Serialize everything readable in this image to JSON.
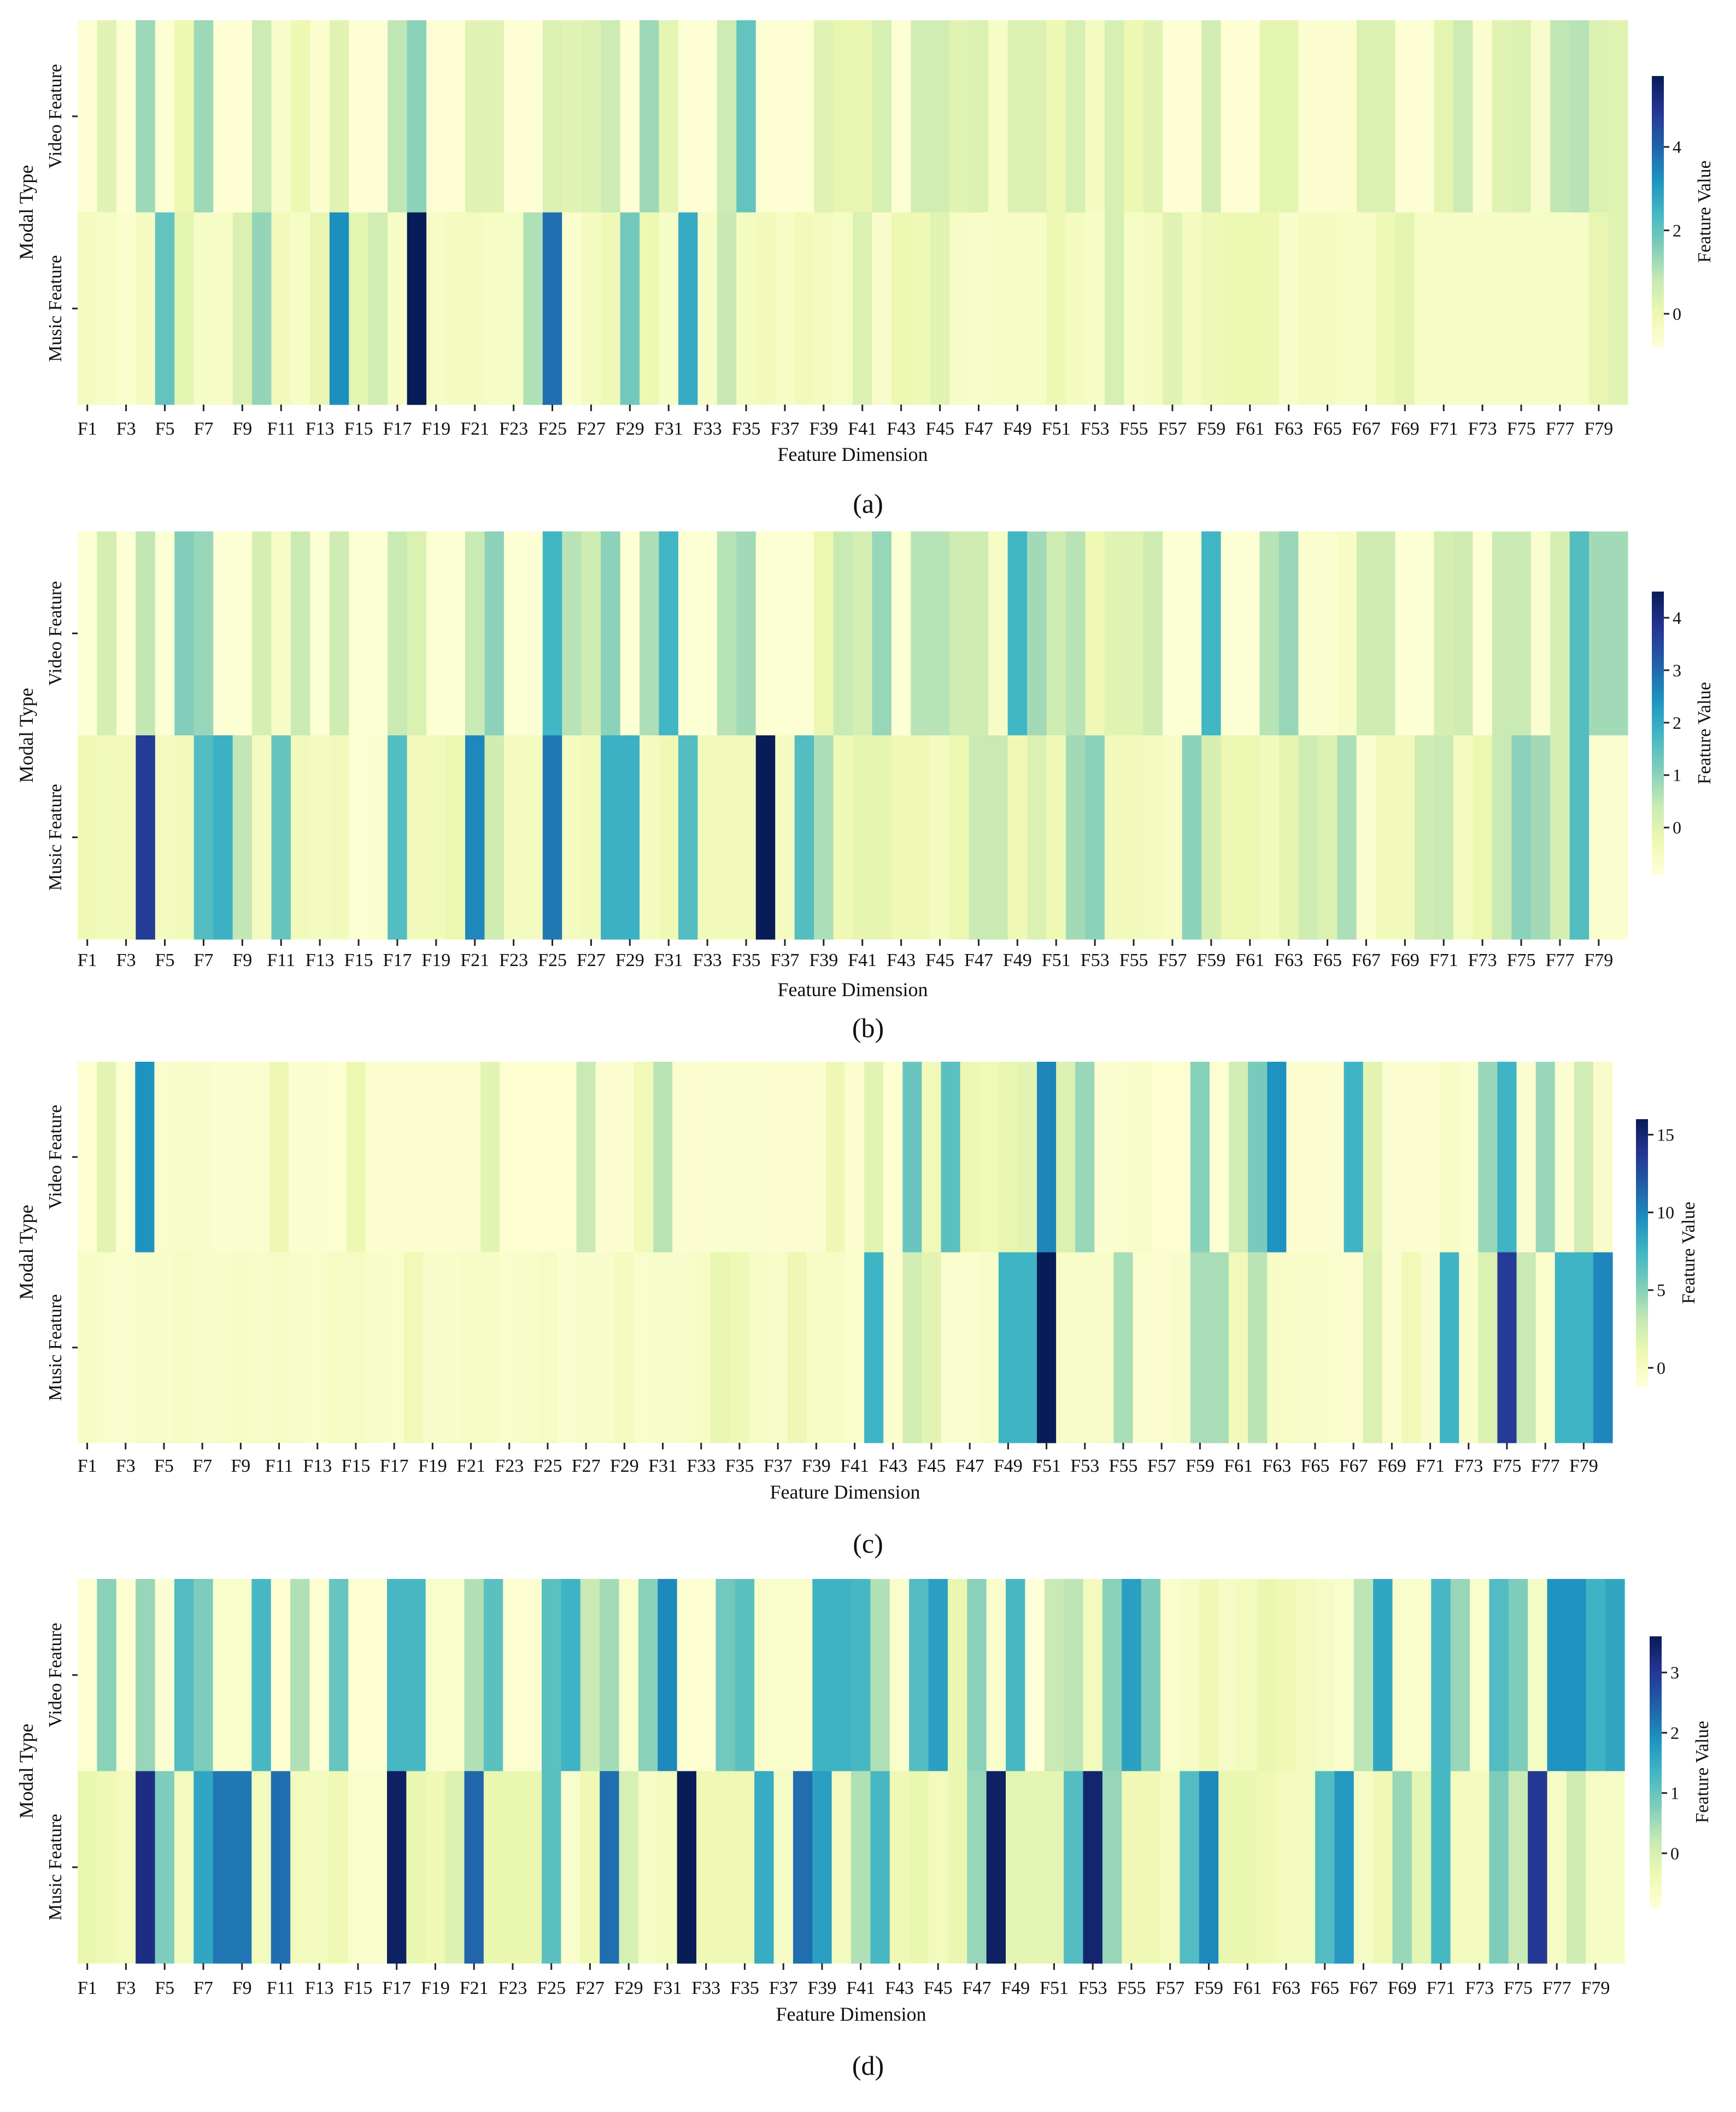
{
  "chart_data": [
    {
      "panel_label": "(a)",
      "type": "heatmap",
      "xlabel": "Feature Dimension",
      "ylabel": "Modal Type",
      "rows": [
        "Video Feature",
        "Music Feature"
      ],
      "x_tick_labels": [
        "F1",
        "F3",
        "F5",
        "F7",
        "F9",
        "F11",
        "F13",
        "F15",
        "F17",
        "F19",
        "F21",
        "F23",
        "F25",
        "F27",
        "F29",
        "F31",
        "F33",
        "F35",
        "F37",
        "F39",
        "F41",
        "F43",
        "F45",
        "F47",
        "F49",
        "F51",
        "F53",
        "F55",
        "F57",
        "F59",
        "F61",
        "F63",
        "F65",
        "F67",
        "F69",
        "F71",
        "F73",
        "F75",
        "F77",
        "F79"
      ],
      "colorbar": {
        "label": "Feature Value",
        "range": [
          -0.8,
          5.7
        ],
        "ticks": [
          "0",
          "2",
          "4"
        ]
      },
      "values": [
        [
          -0.7,
          0.3,
          -0.7,
          1.3,
          -0.7,
          0,
          1.3,
          -0.7,
          -0.7,
          0.7,
          -0.5,
          0,
          -0.6,
          0.3,
          -0.7,
          -0.7,
          0.9,
          1.5,
          -0.7,
          -0.7,
          0.3,
          0.3,
          -0.7,
          -0.7,
          0.4,
          0.3,
          0.4,
          0.7,
          -0.7,
          1.3,
          0.2,
          -0.7,
          -0.7,
          0.7,
          2.0,
          -0.7,
          -0.7,
          -0.7,
          0.3,
          0.1,
          0.1,
          0.5,
          -0.7,
          0.6,
          0.6,
          0.3,
          0.4,
          -0.4,
          0.4,
          0.4,
          0.0,
          0.5,
          -0.3,
          0.5,
          0.0,
          0.3,
          -0.7,
          -0.7,
          0.6,
          -0.7,
          -0.7,
          0.2,
          0.2,
          -0.6,
          -0.6,
          -0.6,
          0.4,
          0.4,
          -0.7,
          -0.7,
          0.2,
          0.7,
          -0.6,
          0.3,
          0.4,
          -0.5,
          0.9,
          1.0,
          0.4,
          0.3
        ],
        [
          -0.3,
          -0.4,
          -0.6,
          -0.3,
          2.0,
          0.2,
          -0.4,
          -0.4,
          0.4,
          1.4,
          -0.2,
          -0.4,
          0.1,
          3.3,
          0.2,
          0.6,
          -0.4,
          5.7,
          -0.4,
          -0.3,
          -0.3,
          -0.4,
          -0.4,
          1.1,
          3.8,
          -0.6,
          -0.3,
          -0.1,
          1.8,
          0.0,
          -0.4,
          2.7,
          -0.4,
          0.8,
          -0.3,
          -0.2,
          -0.4,
          -0.2,
          -0.3,
          -0.4,
          0.4,
          -0.5,
          0.0,
          -0.1,
          0.3,
          -0.4,
          -0.5,
          -0.4,
          -0.4,
          -0.4,
          0.0,
          -0.3,
          -0.4,
          0.5,
          -0.4,
          -0.3,
          0.3,
          -0.3,
          -0.1,
          0.0,
          0.0,
          0.0,
          -0.5,
          -0.3,
          -0.3,
          -0.4,
          -0.4,
          -0.1,
          0.2,
          -0.4,
          -0.4,
          -0.4,
          -0.4,
          -0.4,
          -0.4,
          -0.4,
          -0.4,
          -0.4,
          0.1,
          0.3
        ]
      ]
    },
    {
      "panel_label": "(b)",
      "type": "heatmap",
      "xlabel": "Feature Dimension",
      "ylabel": "Modal Type",
      "rows": [
        "Video Feature",
        "Music Feature"
      ],
      "x_tick_labels": [
        "F1",
        "F3",
        "F5",
        "F7",
        "F9",
        "F11",
        "F13",
        "F15",
        "F17",
        "F19",
        "F21",
        "F23",
        "F25",
        "F27",
        "F29",
        "F31",
        "F33",
        "F35",
        "F37",
        "F39",
        "F41",
        "F43",
        "F45",
        "F47",
        "F49",
        "F51",
        "F53",
        "F55",
        "F57",
        "F59",
        "F61",
        "F63",
        "F65",
        "F67",
        "F69",
        "F71",
        "F73",
        "F75",
        "F77",
        "F79"
      ],
      "colorbar": {
        "label": "Feature Value",
        "range": [
          -0.9,
          4.5
        ],
        "ticks": [
          "0",
          "1",
          "2",
          "3",
          "4"
        ]
      },
      "values": [
        [
          -0.8,
          0.2,
          -0.8,
          0.5,
          -0.8,
          1.1,
          0.9,
          -0.8,
          -0.8,
          0.2,
          -0.6,
          0.4,
          -0.8,
          0.3,
          -0.8,
          -0.8,
          0.4,
          0.1,
          -0.8,
          -0.8,
          0.4,
          1.0,
          -0.8,
          -0.8,
          1.8,
          0.6,
          0.3,
          1.0,
          -0.8,
          0.7,
          1.8,
          -0.8,
          -0.8,
          0.6,
          0.8,
          -0.8,
          -0.8,
          -0.8,
          -0.2,
          0.4,
          0.2,
          0.9,
          -0.8,
          0.6,
          0.6,
          0.3,
          0.3,
          -0.6,
          1.8,
          0.8,
          0.3,
          0.6,
          -0.3,
          0.0,
          0.0,
          0.3,
          -0.8,
          -0.8,
          1.8,
          -0.8,
          -0.8,
          0.6,
          0.9,
          -0.7,
          -0.7,
          -0.6,
          0.3,
          0.3,
          -0.8,
          -0.8,
          0.2,
          0.3,
          -0.8,
          0.4,
          0.4,
          -0.7,
          0.2,
          1.6,
          0.8,
          0.8
        ],
        [
          -0.3,
          -0.4,
          -0.4,
          3.7,
          -0.5,
          -0.4,
          1.6,
          1.9,
          0.5,
          -0.5,
          1.4,
          -0.4,
          -0.5,
          -0.4,
          -0.8,
          -0.7,
          1.6,
          -0.4,
          -0.4,
          -0.2,
          2.6,
          0.3,
          -0.5,
          -0.5,
          2.8,
          -0.5,
          -0.4,
          1.9,
          1.9,
          -0.5,
          -0.3,
          1.6,
          -0.4,
          -0.4,
          -0.4,
          4.5,
          -0.5,
          1.6,
          0.7,
          -0.3,
          -0.1,
          -0.1,
          -0.3,
          -0.3,
          -0.5,
          -0.2,
          0.4,
          0.4,
          -0.3,
          0.1,
          -0.3,
          0.8,
          1.0,
          -0.4,
          -0.4,
          -0.5,
          -0.6,
          1.0,
          0.2,
          -0.2,
          -0.2,
          -0.4,
          -0.1,
          0.3,
          0.1,
          0.7,
          -0.7,
          -0.4,
          -0.4,
          0.3,
          0.4,
          -0.5,
          -0.2,
          0.4,
          1.0,
          0.8,
          0.2,
          1.6,
          -0.7,
          -0.7
        ]
      ]
    },
    {
      "panel_label": "(c)",
      "type": "heatmap",
      "xlabel": "Feature Dimension",
      "ylabel": "Modal Type",
      "rows": [
        "Video Feature",
        "Music Feature"
      ],
      "x_tick_labels": [
        "F1",
        "F3",
        "F5",
        "F7",
        "F9",
        "F11",
        "F13",
        "F15",
        "F17",
        "F19",
        "F21",
        "F23",
        "F25",
        "F27",
        "F29",
        "F31",
        "F33",
        "F35",
        "F37",
        "F39",
        "F41",
        "F43",
        "F45",
        "F47",
        "F49",
        "F51",
        "F53",
        "F55",
        "F57",
        "F59",
        "F61",
        "F63",
        "F65",
        "F67",
        "F69",
        "F71",
        "F73",
        "F75",
        "F77",
        "F79"
      ],
      "colorbar": {
        "label": "Feature Value",
        "range": [
          -1.2,
          16
        ],
        "ticks": [
          "0",
          "5",
          "10",
          "15"
        ]
      },
      "values": [
        [
          -0.8,
          1.5,
          -0.8,
          9.5,
          -0.5,
          -0.3,
          -0.4,
          -0.6,
          -0.6,
          -0.6,
          0.8,
          -0.6,
          -0.6,
          -0.8,
          1.0,
          -0.7,
          -0.7,
          -0.7,
          -0.7,
          -0.7,
          -0.7,
          1.5,
          -0.8,
          -0.8,
          -0.8,
          -0.8,
          3.0,
          -0.7,
          -0.7,
          0.6,
          3.5,
          -0.7,
          -0.7,
          -0.6,
          -0.6,
          -0.6,
          -0.7,
          -0.7,
          -0.7,
          0.8,
          -0.7,
          1.5,
          -0.8,
          6,
          0.5,
          6.5,
          1.0,
          0.6,
          1.2,
          1.5,
          10,
          2.0,
          4.5,
          -0.7,
          -0.5,
          -0.3,
          -0.8,
          -0.8,
          5,
          -0.8,
          2.5,
          5.5,
          9.5,
          -0.7,
          -0.7,
          -0.7,
          7.5,
          1.5,
          -0.7,
          -0.7,
          -0.7,
          -0.2,
          -0.6,
          4.5,
          7.5,
          -0.7,
          4.5,
          -0.7,
          2.5,
          -0.4
        ],
        [
          -0.2,
          -0.5,
          -0.6,
          -0.3,
          -0.4,
          0.0,
          -0.4,
          -0.3,
          -0.2,
          -0.3,
          -0.2,
          -0.3,
          -0.5,
          0.0,
          -0.1,
          -0.4,
          -0.5,
          0.6,
          -0.4,
          -0.3,
          -0.1,
          -0.2,
          -0.5,
          -0.3,
          -0.1,
          -0.6,
          -0.4,
          -0.4,
          0.3,
          -0.5,
          -0.4,
          -0.4,
          -0.2,
          1.2,
          0.7,
          -0.2,
          -0.3,
          0.8,
          -0.2,
          -0.2,
          -0.5,
          7.5,
          -0.6,
          2.5,
          1.5,
          -0.6,
          -0.6,
          -0.3,
          7.5,
          7.5,
          16,
          -0.3,
          -0.4,
          -0.3,
          4.0,
          -0.6,
          -0.7,
          -0.4,
          4.0,
          4.0,
          0.5,
          3.5,
          -0.2,
          -0.3,
          -0.3,
          -0.5,
          -0.7,
          2.0,
          -0.7,
          0.5,
          -0.4,
          7.5,
          -0.4,
          2.0,
          13.5,
          3.0,
          -0.5,
          7.5,
          7.5,
          10
        ]
      ]
    },
    {
      "panel_label": "(d)",
      "type": "heatmap",
      "xlabel": "Feature Dimension",
      "ylabel": "Modal Type",
      "rows": [
        "Video Feature",
        "Music Feature"
      ],
      "x_tick_labels": [
        "F1",
        "F3",
        "F5",
        "F7",
        "F9",
        "F11",
        "F13",
        "F15",
        "F17",
        "F19",
        "F21",
        "F23",
        "F25",
        "F27",
        "F29",
        "F31",
        "F33",
        "F35",
        "F37",
        "F39",
        "F41",
        "F43",
        "F45",
        "F47",
        "F49",
        "F51",
        "F53",
        "F55",
        "F57",
        "F59",
        "F61",
        "F63",
        "F65",
        "F67",
        "F69",
        "F71",
        "F73",
        "F75",
        "F77",
        "F79"
      ],
      "colorbar": {
        "label": "Feature Value",
        "range": [
          -0.9,
          3.6
        ],
        "ticks": [
          "0",
          "1",
          "2",
          "3"
        ]
      },
      "values": [
        [
          -0.8,
          0.7,
          -0.8,
          0.6,
          -0.8,
          1.2,
          0.8,
          -0.7,
          -0.7,
          1.3,
          -0.8,
          0.4,
          -0.8,
          1.0,
          -0.8,
          -0.8,
          1.3,
          1.3,
          -0.7,
          -0.7,
          0.4,
          1.1,
          -0.8,
          -0.8,
          1.1,
          1.4,
          0.2,
          0.5,
          -0.7,
          0.7,
          2.0,
          -0.8,
          -0.8,
          0.9,
          1.1,
          -0.7,
          -0.7,
          -0.7,
          1.4,
          1.4,
          1.3,
          0.4,
          -0.7,
          1.2,
          1.7,
          -0.3,
          0.7,
          -0.7,
          1.3,
          -0.9,
          0.2,
          0.3,
          -0.5,
          0.7,
          1.7,
          0.8,
          -0.7,
          -0.6,
          -0.4,
          -0.6,
          -0.5,
          -0.3,
          -0.4,
          -0.5,
          -0.6,
          -0.7,
          0.3,
          1.6,
          -0.7,
          -0.7,
          1.3,
          0.6,
          -0.7,
          1.2,
          0.8,
          -0.6,
          1.9,
          1.9,
          1.4,
          1.6
        ],
        [
          -0.3,
          -0.4,
          -0.5,
          3.2,
          0.8,
          -0.5,
          1.6,
          2.2,
          2.2,
          -0.5,
          2.3,
          -0.5,
          -0.5,
          -0.4,
          -0.7,
          -0.7,
          3.5,
          -0.3,
          -0.4,
          -0.1,
          2.4,
          -0.3,
          -0.3,
          -0.3,
          1.1,
          -0.7,
          -0.4,
          2.3,
          0.0,
          -0.6,
          -0.5,
          3.6,
          -0.4,
          -0.4,
          -0.4,
          1.5,
          -0.6,
          2.3,
          1.7,
          -0.5,
          0.4,
          1.3,
          -0.4,
          -0.3,
          -0.5,
          -0.3,
          0.6,
          3.5,
          -0.2,
          -0.2,
          -0.2,
          1.2,
          3.4,
          0.6,
          -0.4,
          -0.4,
          -0.5,
          1.2,
          2.0,
          -0.3,
          -0.3,
          -0.4,
          -0.5,
          -0.5,
          1.2,
          1.8,
          -0.6,
          -0.4,
          0.6,
          -0.2,
          1.3,
          -0.5,
          -0.5,
          0.8,
          0.2,
          3.0,
          -0.6,
          0.1,
          -0.6,
          -0.6
        ]
      ]
    }
  ]
}
